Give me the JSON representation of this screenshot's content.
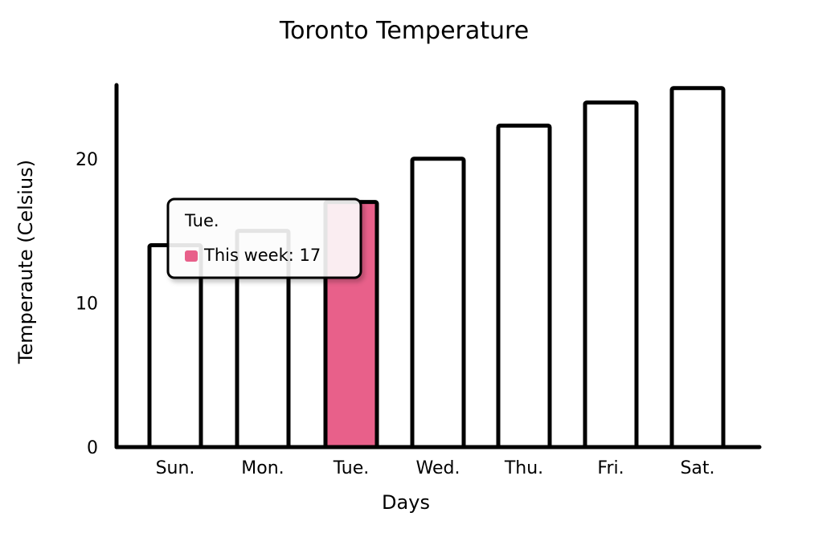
{
  "chart_data": {
    "type": "bar",
    "title": "Toronto Temperature",
    "xlabel": "Days",
    "ylabel": "Temperaute (Celsius)",
    "categories": [
      "Sun.",
      "Mon.",
      "Tue.",
      "Wed.",
      "Thu.",
      "Fri.",
      "Sat."
    ],
    "series": [
      {
        "name": "This week",
        "values": [
          14,
          15,
          17,
          20,
          22.3,
          23.9,
          24.9
        ]
      }
    ],
    "ylim": [
      0,
      25
    ],
    "yticks": [
      0,
      10,
      20
    ],
    "grid": false,
    "highlight": {
      "category": "Tue.",
      "color": "#e8608a"
    },
    "tooltip": {
      "title": "Tue.",
      "series_name": "This week",
      "value": "17",
      "label": "This week: 17"
    },
    "colors": {
      "bar_fill": "#ffffff",
      "bar_stroke": "#000000",
      "highlight_fill": "#e8608a",
      "axis": "#000000"
    }
  }
}
